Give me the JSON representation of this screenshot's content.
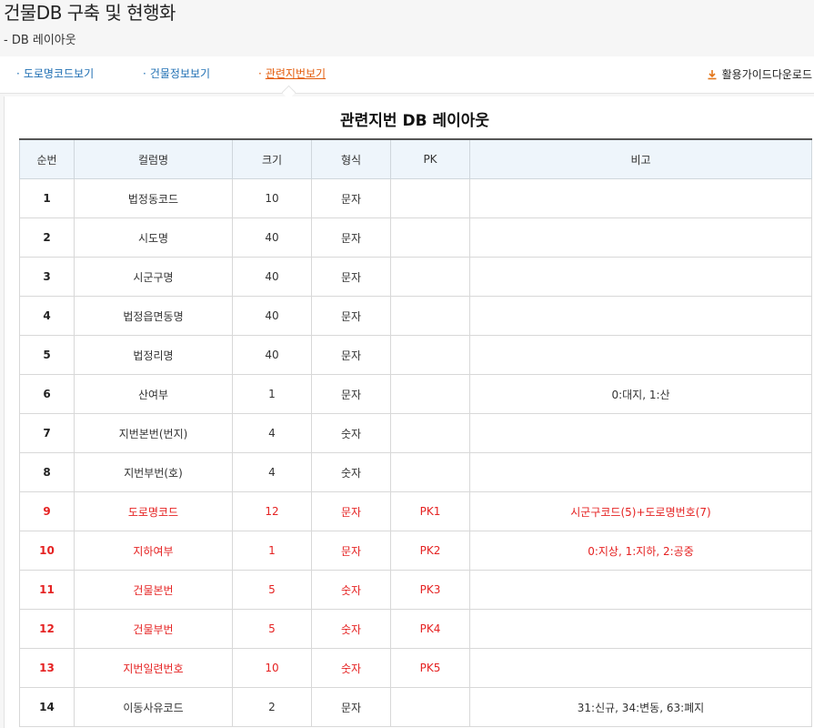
{
  "header": {
    "title": "건물DB 구축 및 현행화",
    "subtitle": "- DB 레이아웃"
  },
  "tabs": [
    {
      "label": "도로명코드보기",
      "active": false
    },
    {
      "label": "건물정보보기",
      "active": false
    },
    {
      "label": "관련지번보기",
      "active": true
    }
  ],
  "download": {
    "label": "활용가이드다운로드",
    "icon": "download-icon"
  },
  "table": {
    "title": "관련지번 DB 레이아웃",
    "columns": [
      "순번",
      "컬럼명",
      "크기",
      "형식",
      "PK",
      "비고"
    ],
    "rows": [
      {
        "no": "1",
        "name": "법정동코드",
        "size": "10",
        "type": "문자",
        "pk": "",
        "note": ""
      },
      {
        "no": "2",
        "name": "시도명",
        "size": "40",
        "type": "문자",
        "pk": "",
        "note": ""
      },
      {
        "no": "3",
        "name": "시군구명",
        "size": "40",
        "type": "문자",
        "pk": "",
        "note": ""
      },
      {
        "no": "4",
        "name": "법정읍면동명",
        "size": "40",
        "type": "문자",
        "pk": "",
        "note": ""
      },
      {
        "no": "5",
        "name": "법정리명",
        "size": "40",
        "type": "문자",
        "pk": "",
        "note": ""
      },
      {
        "no": "6",
        "name": "산여부",
        "size": "1",
        "type": "문자",
        "pk": "",
        "note": "0:대지, 1:산"
      },
      {
        "no": "7",
        "name": "지번본번(번지)",
        "size": "4",
        "type": "숫자",
        "pk": "",
        "note": ""
      },
      {
        "no": "8",
        "name": "지번부번(호)",
        "size": "4",
        "type": "숫자",
        "pk": "",
        "note": ""
      },
      {
        "no": "9",
        "name": "도로명코드",
        "size": "12",
        "type": "문자",
        "pk": "PK1",
        "note": "시군구코드(5)+도로명번호(7)"
      },
      {
        "no": "10",
        "name": "지하여부",
        "size": "1",
        "type": "문자",
        "pk": "PK2",
        "note": "0:지상, 1:지하, 2:공중"
      },
      {
        "no": "11",
        "name": "건물본번",
        "size": "5",
        "type": "숫자",
        "pk": "PK3",
        "note": ""
      },
      {
        "no": "12",
        "name": "건물부번",
        "size": "5",
        "type": "숫자",
        "pk": "PK4",
        "note": ""
      },
      {
        "no": "13",
        "name": "지번일련번호",
        "size": "10",
        "type": "숫자",
        "pk": "PK5",
        "note": ""
      },
      {
        "no": "14",
        "name": "이동사유코드",
        "size": "2",
        "type": "문자",
        "pk": "",
        "note": "31:신규, 34:변동, 63:폐지"
      }
    ]
  },
  "colors": {
    "tab_link": "#1f6fb3",
    "tab_active": "#e35b0a",
    "pk_row": "#e52222",
    "header_bg": "#eef5fb",
    "download_icon": "#e3761a"
  }
}
